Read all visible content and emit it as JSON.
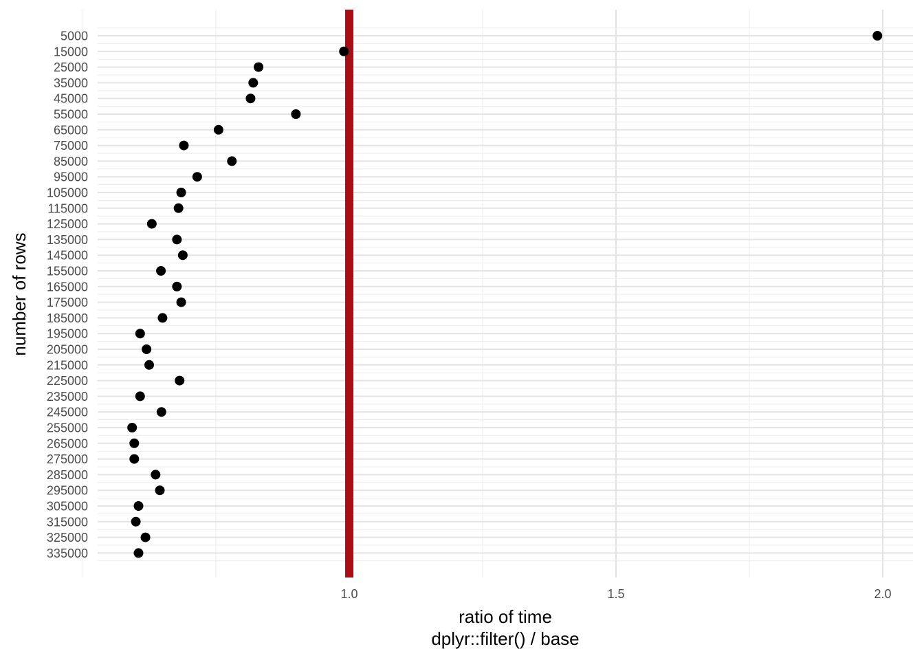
{
  "chart_data": {
    "type": "scatter",
    "title": "",
    "xlabel": "ratio of time\ndplyr::filter() / base",
    "ylabel": "number of rows",
    "x_ticks": [
      1.0,
      1.5,
      2.0
    ],
    "x_tick_labels": [
      "1.0",
      "1.5",
      "2.0"
    ],
    "xlim": [
      0.44,
      2.15
    ],
    "grid": true,
    "legend": "none",
    "reference_line": {
      "x": 1.0,
      "color": "#a50f15"
    },
    "point_color": "#000000",
    "categories": [
      "5000",
      "15000",
      "25000",
      "35000",
      "45000",
      "55000",
      "65000",
      "75000",
      "85000",
      "95000",
      "105000",
      "115000",
      "125000",
      "135000",
      "145000",
      "155000",
      "165000",
      "175000",
      "185000",
      "195000",
      "205000",
      "215000",
      "225000",
      "235000",
      "245000",
      "255000",
      "265000",
      "275000",
      "285000",
      "295000",
      "305000",
      "315000",
      "325000",
      "335000"
    ],
    "values": [
      1.99,
      0.99,
      0.83,
      0.82,
      0.815,
      0.9,
      0.755,
      0.69,
      0.78,
      0.715,
      0.685,
      0.68,
      0.63,
      0.677,
      0.688,
      0.647,
      0.677,
      0.685,
      0.65,
      0.608,
      0.62,
      0.625,
      0.682,
      0.608,
      0.648,
      0.593,
      0.597,
      0.597,
      0.637,
      0.645,
      0.605,
      0.6,
      0.618,
      0.605
    ]
  }
}
